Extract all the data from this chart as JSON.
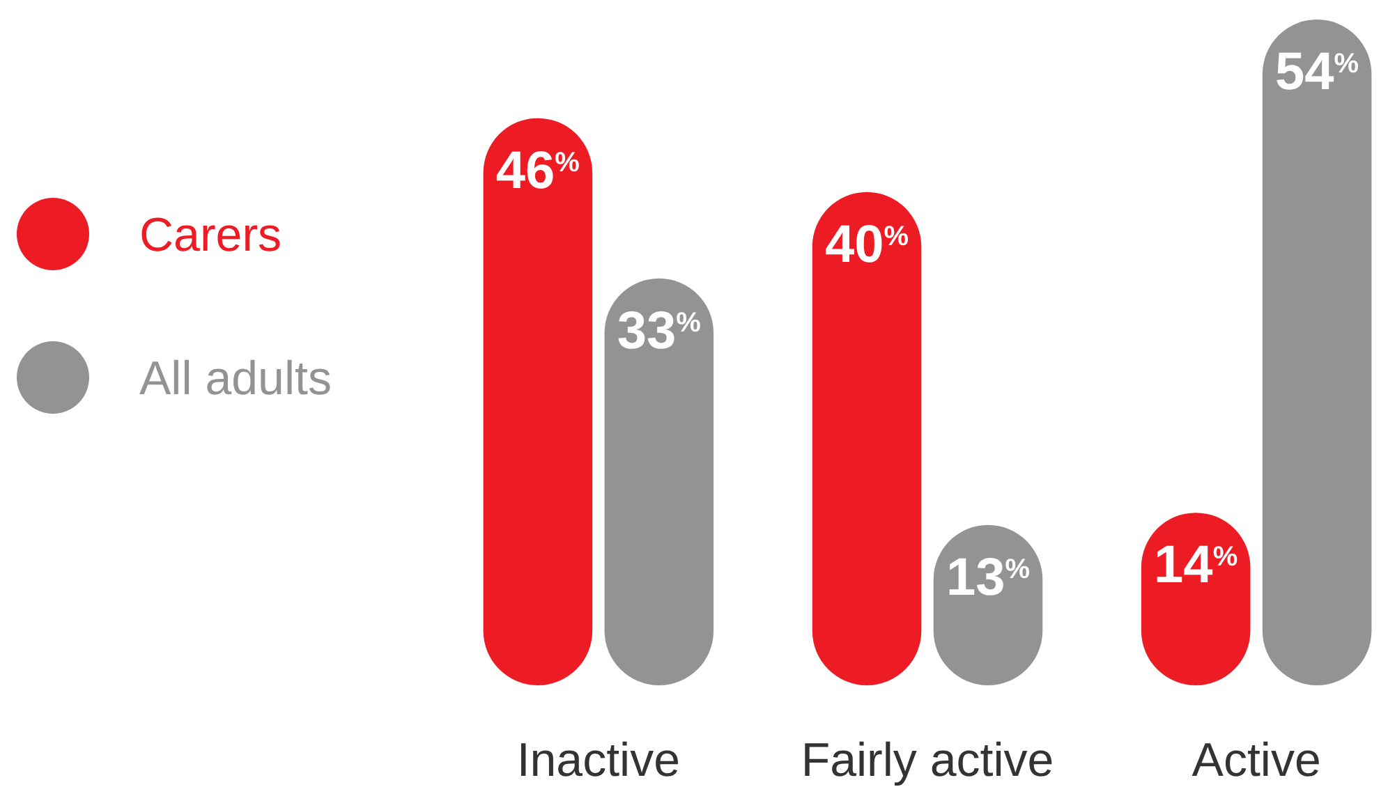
{
  "chart_data": {
    "type": "bar",
    "categories": [
      "Inactive",
      "Fairly active",
      "Active"
    ],
    "series": [
      {
        "name": "Carers",
        "color": "#ed1c24",
        "values": [
          46,
          40,
          14
        ],
        "value_labels": [
          "46$^{%}$",
          "40$^{%}$",
          "14$^{%}$"
        ]
      },
      {
        "name": "All adults",
        "color": "#939393",
        "values": [
          33,
          13,
          54
        ],
        "value_labels": [
          "33$^{%}$",
          "13$^{%}$",
          "54$^{%}$"
        ]
      }
    ],
    "legend": "left"
  }
}
